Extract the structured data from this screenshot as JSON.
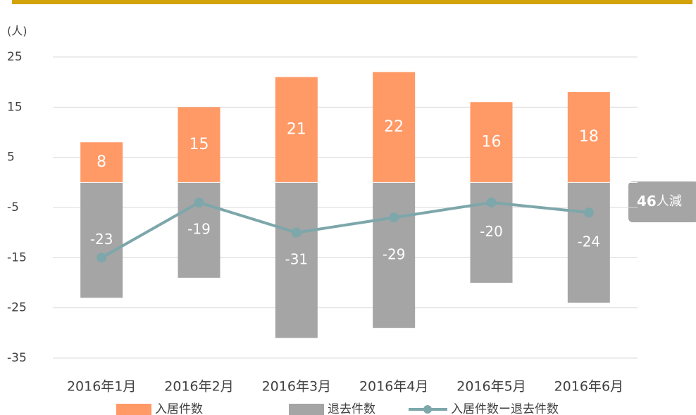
{
  "chart_data": {
    "type": "bar-line",
    "y_label": "(人)",
    "categories": [
      "2016年1月",
      "2016年2月",
      "2016年3月",
      "2016年4月",
      "2016年5月",
      "2016年6月"
    ],
    "series": [
      {
        "name": "入居件数",
        "type": "bar",
        "color": "#ff9966",
        "values": [
          8,
          15,
          21,
          22,
          16,
          18
        ]
      },
      {
        "name": "退去件数",
        "type": "bar",
        "color": "#a5a5a5",
        "values": [
          -23,
          -19,
          -31,
          -29,
          -20,
          -24
        ]
      },
      {
        "name": "入居件数ー退去件数",
        "type": "line",
        "color": "#7da7aa",
        "values": [
          -15,
          -4,
          -10,
          -7,
          -4,
          -6
        ]
      }
    ],
    "ylim": [
      -35,
      25
    ],
    "yticks": [
      -35,
      -25,
      -15,
      -5,
      5,
      15,
      25
    ],
    "grid": true,
    "annotation": [
      "46",
      "人減"
    ]
  }
}
